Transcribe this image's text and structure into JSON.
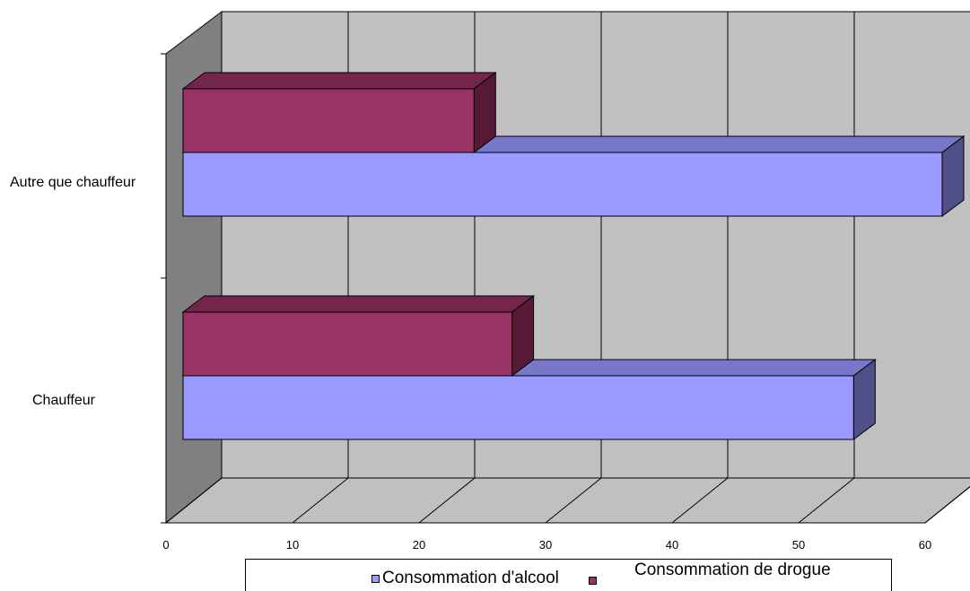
{
  "chart_data": {
    "type": "bar",
    "orientation": "horizontal",
    "three_d": true,
    "categories": [
      "Autre que chauffeur",
      "Chauffeur"
    ],
    "series": [
      {
        "name": "Consommation d'alcool",
        "values": [
          60,
          53
        ],
        "color": "#9999ff",
        "side_color": "#4f4f8a",
        "top_color": "#7777cc"
      },
      {
        "name": "Consommation de drogue",
        "values": [
          23,
          26
        ],
        "color": "#993366",
        "side_color": "#561a36",
        "top_color": "#752549"
      }
    ],
    "x_ticks": [
      0,
      10,
      20,
      30,
      40,
      50,
      60
    ],
    "xlim": [
      0,
      60
    ],
    "grid": true,
    "legend_position": "bottom",
    "wall_color": "#c0c0c0",
    "side_wall_color": "#808080"
  }
}
